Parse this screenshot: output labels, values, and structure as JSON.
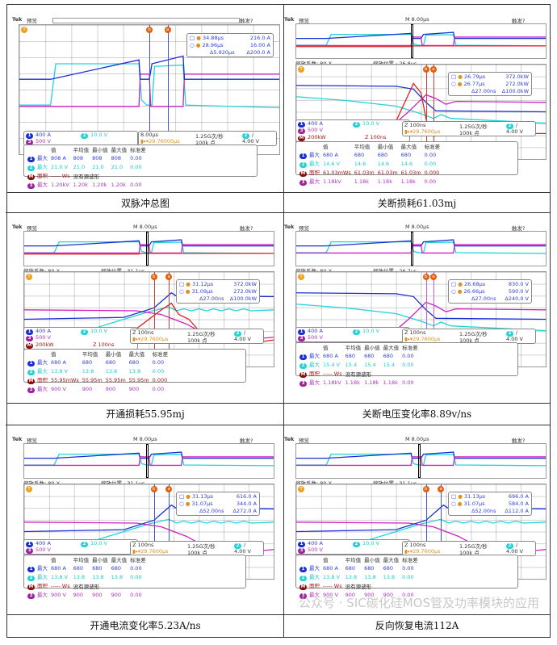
{
  "colors": {
    "ch1": "#1a2fd0",
    "ch2": "#22d3d8",
    "ch3": "#d020c0",
    "math": "#e02020",
    "cursor_a": "#e06010"
  },
  "watermark": "公众号 · SIC碳化硅MOS管及功率模块的应用",
  "panels": [
    {
      "caption": "双脉冲总图",
      "kind": "overview",
      "header": {
        "brand": "Tek",
        "mode": "预览",
        "timebase": "",
        "trigger": "触发?"
      },
      "cursor": {
        "a_time": "34.88µs",
        "a_value": "216.0 A",
        "b_time": "28.96µs",
        "b_value": "16.00 A",
        "delta_time": "Δ5.920µs",
        "delta_value": "Δ200.0 A"
      },
      "channels": {
        "ch1": "400 A",
        "ch2": "10.0 V",
        "ch3": "500 V"
      },
      "acquisition": {
        "horizontal": "8.00µs",
        "sample_rate": "1.25G次/秒",
        "trigger_pos": "29.76000µs",
        "points": "100k 点",
        "trigger_ch": "2",
        "trigger_slope": "/",
        "trigger_level": "4.00 V"
      },
      "measurements": {
        "headers": [
          "值",
          "平均值",
          "最小值",
          "最大值",
          "标准差"
        ],
        "rows": [
          {
            "ch": "1",
            "label": "最大",
            "values": [
              "808 A",
              "808",
              "808",
              "808",
              "0.00"
            ]
          },
          {
            "ch": "2",
            "label": "最大",
            "values": [
              "21.0 V",
              "21.0",
              "21.0",
              "21.0",
              "0.00"
            ]
          },
          {
            "ch": "M",
            "label": "面积",
            "values": [
              "----- Ws",
              "没有源波形"
            ]
          },
          {
            "ch": "3",
            "label": "最大",
            "values": [
              "1.20kV",
              "1.20k",
              "1.20k",
              "1.20k",
              "0.00"
            ]
          }
        ]
      }
    },
    {
      "caption": "关断损耗61.03mj",
      "kind": "turnoff",
      "math": true,
      "header": {
        "brand": "Tek",
        "mode": "预览",
        "timebase": "M 8.00µs",
        "trigger": "触发?"
      },
      "zoom": {
        "factor": "缩放系数: 80 X",
        "position": "缩放位置 : 26.8µs"
      },
      "cursor": {
        "a_time": "26.79µs",
        "a_value": "372.0kW",
        "b_time": "26.77µs",
        "b_value": "272.0kW",
        "delta_time": "Δ27.00ns",
        "delta_value": "Δ100.0kW"
      },
      "channels": {
        "ch1": "400 A",
        "ch2": "10.0 V",
        "ch3": "500 V",
        "math": "200kW",
        "math_zoom": "Z 100ns"
      },
      "acquisition": {
        "horizontal": "Z 100ns",
        "sample_rate": "1.25G次/秒",
        "trigger_pos": "29.7600µs",
        "points": "100k 点",
        "trigger_ch": "2",
        "trigger_slope": "/",
        "trigger_level": "4.00 V"
      },
      "measurements": {
        "headers": [
          "值",
          "平均值",
          "最小值",
          "最大值",
          "标准差"
        ],
        "rows": [
          {
            "ch": "1",
            "label": "最大",
            "values": [
              "680 A",
              "680",
              "680",
              "680",
              "0.00"
            ]
          },
          {
            "ch": "2",
            "label": "最大",
            "values": [
              "14.6 V",
              "14.6",
              "14.6",
              "14.6",
              "0.00"
            ]
          },
          {
            "ch": "M",
            "label": "面积",
            "values": [
              "61.03mWs",
              "61.03m",
              "61.03m",
              "61.03m",
              "0.000"
            ]
          },
          {
            "ch": "3",
            "label": "最大",
            "values": [
              "1.18kV",
              "1.18k",
              "1.18k",
              "1.18k",
              "0.00"
            ]
          }
        ]
      }
    },
    {
      "caption": "开通损耗55.95mj",
      "kind": "turnon",
      "math": true,
      "header": {
        "brand": "Tek",
        "mode": "预览",
        "timebase": "M 8.00µs",
        "trigger": "触发?"
      },
      "zoom": {
        "factor": "缩放系数: 80 X",
        "position": "缩放位置 : 31.1µs"
      },
      "cursor": {
        "a_time": "31.12µs",
        "a_value": "372.0kW",
        "b_time": "31.09µs",
        "b_value": "272.0kW",
        "delta_time": "Δ27.00ns",
        "delta_value": "Δ100.0kW"
      },
      "channels": {
        "ch1": "400 A",
        "ch2": "10.0 V",
        "ch3": "500 V",
        "math": "200kW",
        "math_zoom": "Z 100ns"
      },
      "acquisition": {
        "horizontal": "Z 100ns",
        "sample_rate": "1.25G次/秒",
        "trigger_pos": "29.7600µs",
        "points": "100k 点",
        "trigger_ch": "2",
        "trigger_slope": "/",
        "trigger_level": "4.00 V"
      },
      "measurements": {
        "headers": [
          "值",
          "平均值",
          "最小值",
          "最大值",
          "标准差"
        ],
        "rows": [
          {
            "ch": "1",
            "label": "最大",
            "values": [
              "680 A",
              "680",
              "680",
              "680",
              "0.00"
            ]
          },
          {
            "ch": "2",
            "label": "最大",
            "values": [
              "13.8 V",
              "13.8",
              "13.8",
              "13.8",
              "0.00"
            ]
          },
          {
            "ch": "M",
            "label": "面积",
            "values": [
              "55.95mWs",
              "55.95m",
              "55.95m",
              "55.95m",
              "0.000"
            ]
          },
          {
            "ch": "3",
            "label": "最大",
            "values": [
              "900 V",
              "900",
              "900",
              "900",
              "0.00"
            ]
          }
        ]
      }
    },
    {
      "caption": "关断电压变化率8.89v/ns",
      "kind": "turnoff",
      "header": {
        "brand": "Tek",
        "mode": "预览",
        "timebase": "M 8.00µs",
        "trigger": "触发?"
      },
      "zoom": {
        "factor": "缩放系数: 80 X",
        "position": "缩放位置 : 26.7µs"
      },
      "cursor": {
        "a_time": "26.68µs",
        "a_value": "830.0 V",
        "b_time": "26.66µs",
        "b_value": "590.0 V",
        "delta_time": "Δ27.00ns",
        "delta_value": "Δ240.0 V"
      },
      "channels": {
        "ch1": "400 A",
        "ch2": "10.0 V",
        "ch3": "500 V"
      },
      "acquisition": {
        "horizontal": "Z 100ns",
        "sample_rate": "1.25G次/秒",
        "trigger_pos": "29.7600µs",
        "points": "100k 点",
        "trigger_ch": "2",
        "trigger_slope": "/",
        "trigger_level": "4.00 V"
      },
      "measurements": {
        "headers": [
          "值",
          "平均值",
          "最小值",
          "最大值",
          "标准差"
        ],
        "rows": [
          {
            "ch": "1",
            "label": "最大",
            "values": [
              "680 A",
              "680",
              "680",
              "680",
              "0.00"
            ]
          },
          {
            "ch": "2",
            "label": "最大",
            "values": [
              "15.4 V",
              "15.4",
              "15.4",
              "15.4",
              "0.00"
            ]
          },
          {
            "ch": "M",
            "label": "面积",
            "values": [
              "----- Ws",
              "没有源波形"
            ]
          },
          {
            "ch": "3",
            "label": "最大",
            "values": [
              "1.18kV",
              "1.18k",
              "1.18k",
              "1.18k",
              "0.00"
            ]
          }
        ]
      }
    },
    {
      "caption": "开通电流变化率5.23A/ns",
      "kind": "turnon",
      "header": {
        "brand": "Tek",
        "mode": "预览",
        "timebase": "M 8.00µs",
        "trigger": "触发?"
      },
      "zoom": {
        "factor": "缩放系数: 80 X",
        "position": "缩放位置 : 31.1µs"
      },
      "cursor": {
        "a_time": "31.13µs",
        "a_value": "616.0 A",
        "b_time": "31.07µs",
        "b_value": "344.0 A",
        "delta_time": "Δ52.00ns",
        "delta_value": "Δ272.0 A"
      },
      "channels": {
        "ch1": "400 A",
        "ch2": "10.0 V",
        "ch3": "500 V"
      },
      "acquisition": {
        "horizontal": "Z 100ns",
        "sample_rate": "1.25G次/秒",
        "trigger_pos": "29.7600µs",
        "points": "100k 点",
        "trigger_ch": "2",
        "trigger_slope": "/",
        "trigger_level": "4.00 V"
      },
      "measurements": {
        "headers": [
          "值",
          "平均值",
          "最小值",
          "最大值",
          "标准差"
        ],
        "rows": [
          {
            "ch": "1",
            "label": "最大",
            "values": [
              "680 A",
              "680",
              "680",
              "680",
              "0.00"
            ]
          },
          {
            "ch": "2",
            "label": "最大",
            "values": [
              "13.8 V",
              "13.8",
              "13.8",
              "13.8",
              "0.00"
            ]
          },
          {
            "ch": "M",
            "label": "面积",
            "values": [
              "----- Ws",
              "没有源波形"
            ]
          },
          {
            "ch": "3",
            "label": "最大",
            "values": [
              "900 V",
              "900",
              "900",
              "900",
              "0.00"
            ]
          }
        ]
      }
    },
    {
      "caption": "反向恢复电流112A",
      "kind": "turnon",
      "header": {
        "brand": "Tek",
        "mode": "预览",
        "timebase": "M 8.00µs",
        "trigger": "触发?"
      },
      "zoom": {
        "factor": "缩放系数: 80 X",
        "position": "缩放位置 : 31.1µs"
      },
      "cursor": {
        "a_time": "31.13µs",
        "a_value": "696.0 A",
        "b_time": "31.07µs",
        "b_value": "584.0 A",
        "delta_time": "Δ52.00ns",
        "delta_value": "Δ112.0 A"
      },
      "channels": {
        "ch1": "400 A",
        "ch2": "10.0 V",
        "ch3": "500 V"
      },
      "acquisition": {
        "horizontal": "Z 100ns",
        "sample_rate": "1.25G次/秒",
        "trigger_pos": "29.7600µs",
        "points": "100k 点",
        "trigger_ch": "2",
        "trigger_slope": "/",
        "trigger_level": "4.00 V"
      },
      "measurements": {
        "headers": [
          "值",
          "平均值",
          "最小值",
          "最大值",
          "标准差"
        ],
        "rows": [
          {
            "ch": "1",
            "label": "最大",
            "values": [
              "680 A",
              "680",
              "680",
              "680",
              "0.00"
            ]
          },
          {
            "ch": "2",
            "label": "最大",
            "values": [
              "13.8 V",
              "13.8",
              "13.8",
              "13.8",
              "0.00"
            ]
          },
          {
            "ch": "M",
            "label": "面积",
            "values": [
              "----- Ws",
              "没有源波形"
            ]
          },
          {
            "ch": "3",
            "label": "最大",
            "values": [
              "900 V",
              "900",
              "900",
              "900",
              "0.00"
            ]
          }
        ]
      }
    }
  ]
}
